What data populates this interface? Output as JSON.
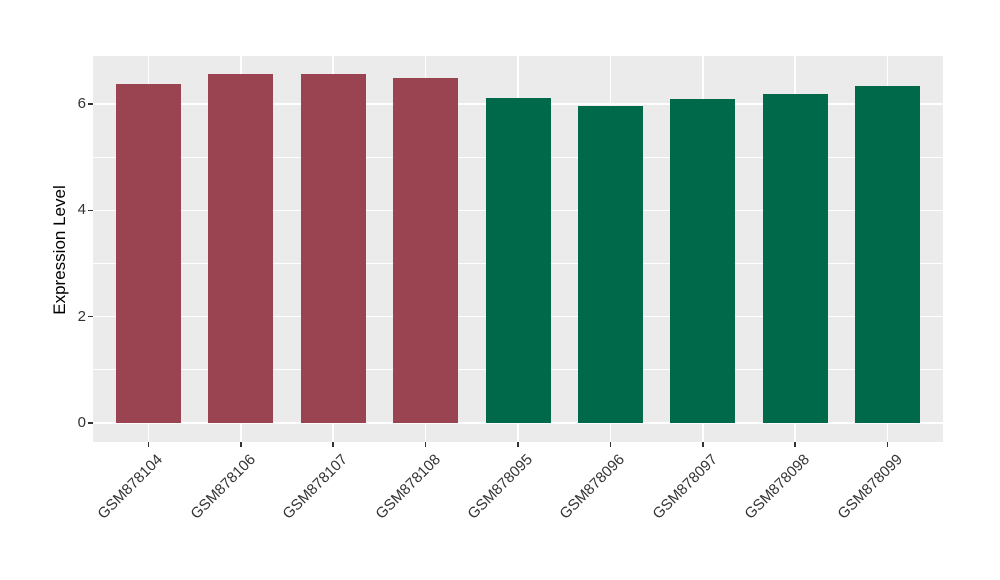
{
  "chart_data": {
    "type": "bar",
    "title": "",
    "xlabel": "",
    "ylabel": "Expression Level",
    "categories": [
      "GSM878104",
      "GSM878106",
      "GSM878107",
      "GSM878108",
      "GSM878095",
      "GSM878096",
      "GSM878097",
      "GSM878098",
      "GSM878099"
    ],
    "values": [
      6.38,
      6.56,
      6.57,
      6.49,
      6.11,
      5.97,
      6.09,
      6.18,
      6.33
    ],
    "bar_colors": [
      "#9A4451",
      "#9A4451",
      "#9A4451",
      "#9A4451",
      "#00694A",
      "#00694A",
      "#00694A",
      "#00694A",
      "#00694A"
    ],
    "yticks": [
      0,
      2,
      4,
      6
    ],
    "minor_yticks": [
      1,
      3,
      5
    ],
    "ylim": [
      -0.36,
      6.9
    ],
    "x_tick_rotation_deg": 45,
    "legend": "none",
    "grid": "on",
    "panel_bg": "#EBEBEB",
    "grid_color": "#FFFFFF",
    "tick_label_color": "#333333",
    "axis_title_color": "#000000"
  }
}
